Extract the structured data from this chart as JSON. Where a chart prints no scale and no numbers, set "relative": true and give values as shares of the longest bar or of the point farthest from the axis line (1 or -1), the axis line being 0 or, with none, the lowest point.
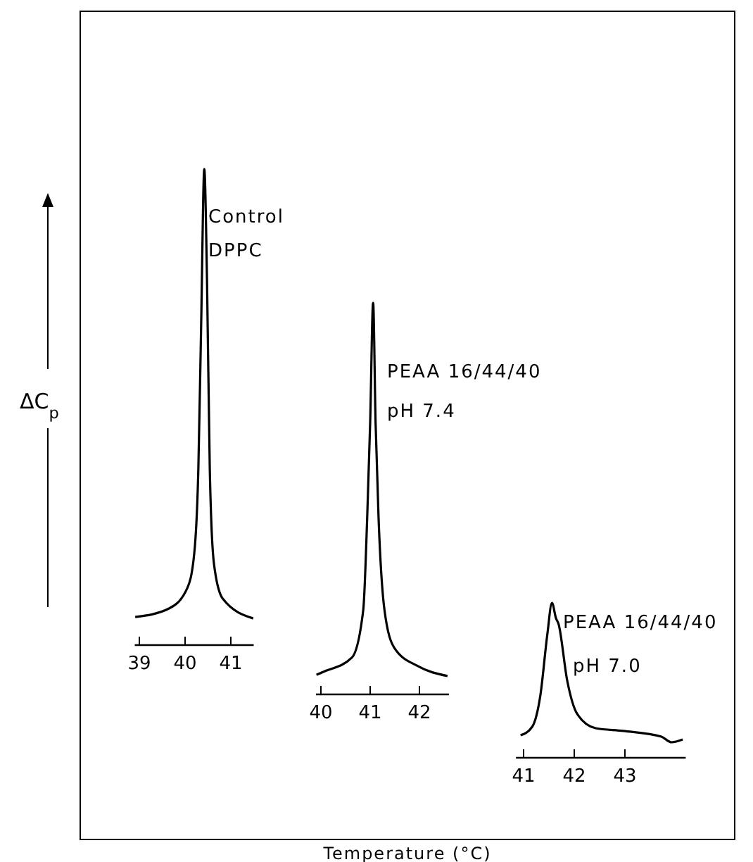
{
  "chart_data": [
    {
      "type": "line",
      "relative": true,
      "ylabel": "ΔC$_{p}$",
      "color": "#000000",
      "xlim": [
        38.9,
        41.5
      ],
      "xticks": [
        39,
        40,
        41
      ],
      "x": [
        38.91,
        39.65,
        40.05,
        40.2,
        40.29,
        40.35,
        40.42,
        40.48,
        40.54,
        40.63,
        40.82,
        41.49
      ],
      "values": [
        0.059,
        0.077,
        0.12,
        0.192,
        0.37,
        0.666,
        1.0,
        0.763,
        0.37,
        0.172,
        0.098,
        0.056
      ],
      "annotations": [
        "Control",
        "DPPC"
      ]
    },
    {
      "type": "line",
      "relative": true,
      "xlabel": "Temperature (°C)",
      "color": "#000000",
      "xlim": [
        39.9,
        42.6
      ],
      "xticks": [
        40,
        41,
        42
      ],
      "x": [
        39.91,
        40.06,
        40.63,
        40.86,
        40.94,
        41.0,
        41.06,
        41.11,
        41.17,
        41.29,
        41.49,
        41.97,
        42.57
      ],
      "values": [
        0.05,
        0.058,
        0.094,
        0.216,
        0.453,
        0.694,
        1.0,
        0.694,
        0.453,
        0.216,
        0.119,
        0.072,
        0.047
      ],
      "annotations": [
        "PEAA 16/44/40",
        "pH 7.4"
      ]
    },
    {
      "type": "line",
      "relative": true,
      "color": "#000000",
      "xlim": [
        40.85,
        44.2
      ],
      "xticks": [
        41,
        42,
        43
      ],
      "x": [
        40.94,
        41.17,
        41.33,
        41.47,
        41.56,
        41.64,
        41.69,
        41.86,
        42.06,
        42.42,
        42.97,
        43.72,
        43.92,
        44.14
      ],
      "values": [
        0.145,
        0.2,
        0.4,
        0.8,
        1.0,
        0.9,
        0.864,
        0.5,
        0.282,
        0.191,
        0.173,
        0.136,
        0.1,
        0.118
      ],
      "annotations": [
        "PEAA 16/44/40",
        "pH 7.0"
      ]
    }
  ]
}
